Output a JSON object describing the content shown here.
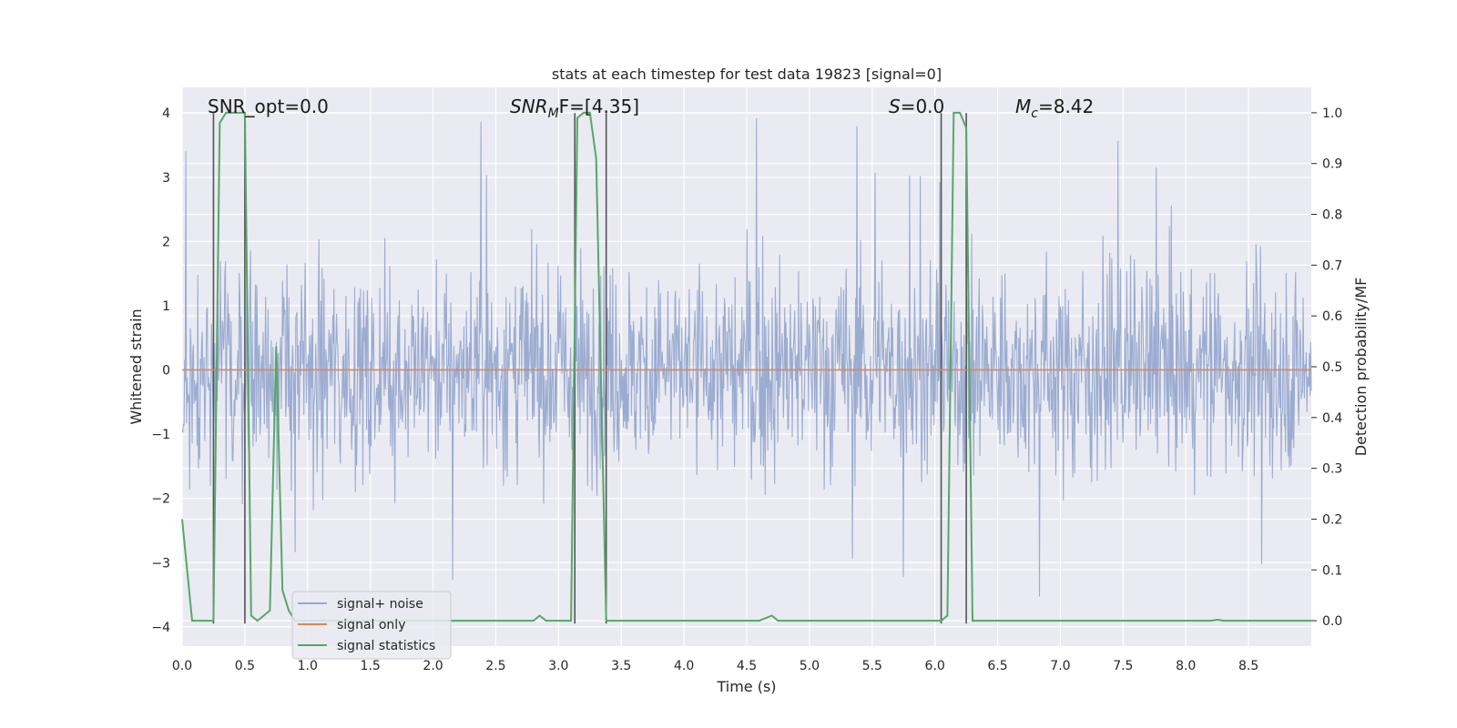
{
  "chart_data": {
    "type": "line",
    "title": "stats at each timestep for test data 19823 [signal=0]",
    "xlabel": "Time (s)",
    "ylabel": "Whitened strain",
    "y2label": "Detection probability/MF",
    "xlim": [
      0,
      9.0
    ],
    "ylim": [
      -4.3,
      4.4
    ],
    "y2lim": [
      -0.05,
      1.05
    ],
    "xticks": [
      "0.0",
      "0.5",
      "1.0",
      "1.5",
      "2.0",
      "2.5",
      "3.0",
      "3.5",
      "4.0",
      "4.5",
      "5.0",
      "5.5",
      "6.0",
      "6.5",
      "7.0",
      "7.5",
      "8.0",
      "8.5"
    ],
    "yticks": [
      "−4",
      "−3",
      "−2",
      "−1",
      "0",
      "1",
      "2",
      "3",
      "4"
    ],
    "y2ticks": [
      "0.0",
      "0.1",
      "0.2",
      "0.3",
      "0.4",
      "0.5",
      "0.6",
      "0.7",
      "0.8",
      "0.9",
      "1.0"
    ],
    "annotations": {
      "snr_opt": "SNR_opt=0.0",
      "snr_mf_base": "SNR",
      "snr_mf_sub": "M",
      "snr_mf_rest": "F=[4.35]",
      "s_italic": "S",
      "s_rest": "=0.0",
      "mc_base": "M",
      "mc_sub": "c",
      "mc_rest": "=8.42"
    },
    "legend": {
      "placement": "lower-left",
      "entries": [
        "signal+ noise",
        "signal only",
        "signal statistics"
      ]
    },
    "series": [
      {
        "name": "signal+ noise",
        "color": "#97a9cf",
        "axis": "left",
        "description": "whitened noise, roughly |x| < 1.6 with spikes up to about ±4"
      },
      {
        "name": "signal only",
        "color": "#dd8452",
        "axis": "left",
        "x": [
          0,
          9.0
        ],
        "y": [
          0,
          0
        ]
      },
      {
        "name": "signal statistics",
        "color": "#55a868",
        "axis": "right",
        "x": [
          0.0,
          0.08,
          0.12,
          0.25,
          0.3,
          0.35,
          0.4,
          0.5,
          0.55,
          0.6,
          0.65,
          0.7,
          0.75,
          0.8,
          0.85,
          0.9,
          2.8,
          2.85,
          2.9,
          2.95,
          3.05,
          3.1,
          3.15,
          3.2,
          3.25,
          3.3,
          3.38,
          3.4,
          3.45,
          4.6,
          4.7,
          4.75,
          4.8,
          4.85,
          6.05,
          6.1,
          6.15,
          6.2,
          6.25,
          6.3,
          6.35,
          6.4,
          8.2,
          8.25,
          8.3,
          9.0
        ],
        "y": [
          0.2,
          0.0,
          0.0,
          0.0,
          0.98,
          1.0,
          1.0,
          1.0,
          0.01,
          0.0,
          0.01,
          0.02,
          0.54,
          0.06,
          0.02,
          0.0,
          0.0,
          0.01,
          0.0,
          0.0,
          0.0,
          0.0,
          0.99,
          1.0,
          1.0,
          0.91,
          0.0,
          0.0,
          0.0,
          0.0,
          0.01,
          0.0,
          0.0,
          0.0,
          0.0,
          0.01,
          1.0,
          1.0,
          0.97,
          0.0,
          0.0,
          0.0,
          0.0,
          0.002,
          0.0,
          0.0
        ]
      }
    ],
    "vertical_markers": {
      "color": "#555555",
      "x": [
        0.25,
        0.5,
        3.13,
        3.38,
        6.05,
        6.25
      ],
      "ymin": -3.95,
      "ymax": 4.0
    }
  }
}
